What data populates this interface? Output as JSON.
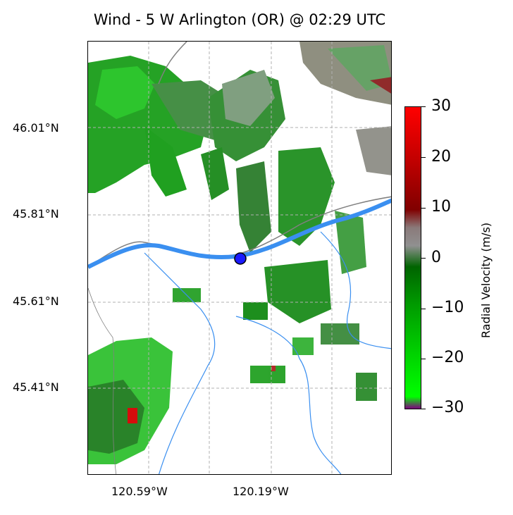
{
  "title": "Wind - 5 W Arlington (OR) @ 02:29 UTC",
  "lat_labels": [
    "46.01°N",
    "45.81°N",
    "45.61°N",
    "45.41°N"
  ],
  "lon_labels": [
    "120.59°W",
    "120.19°W"
  ],
  "colorbar": {
    "label": "Radial Velocity (m/s)",
    "ticks": [
      "30",
      "20",
      "10",
      "0",
      "−10",
      "−20",
      "−30"
    ],
    "range": [
      -30,
      30
    ]
  },
  "colors": {
    "river": "#3a8ff0",
    "border": "#808080",
    "station": "#1a1aff"
  },
  "map": {
    "gridlines": true,
    "station_marker": "circle"
  }
}
